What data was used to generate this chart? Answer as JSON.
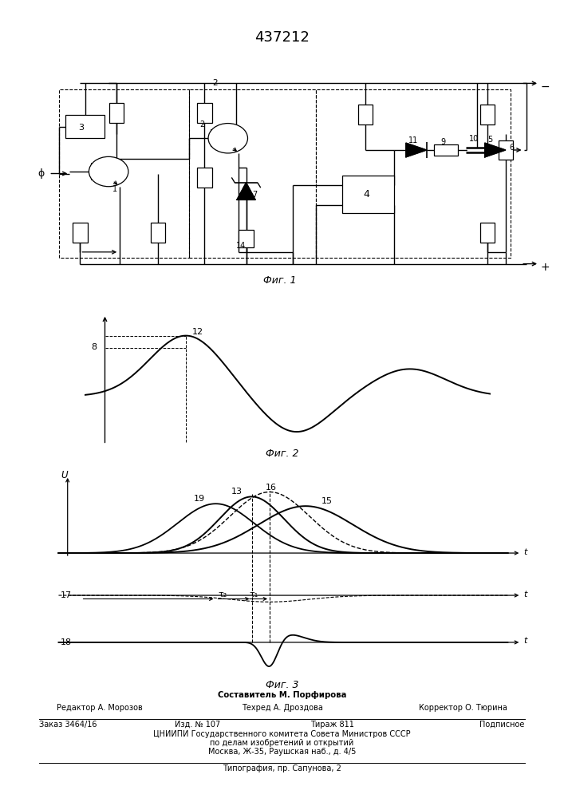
{
  "title": "437212",
  "fig1_label": "Фиг. 1",
  "fig2_label": "Фиг. 2",
  "fig3_label": "Фиг. 3",
  "footer_line1": "Составитель М. Порфирова",
  "footer_line2_left": "Редактор А. Морозов",
  "footer_line2_mid": "Техред А. Дроздова",
  "footer_line2_right": "Корректор О. Тюрина",
  "footer_line3_1": "Заказ 3464/16",
  "footer_line3_2": "Изд. № 107",
  "footer_line3_3": "Тираж 811",
  "footer_line3_4": "Подписное",
  "footer_line4": "ЦНИИПИ Государственного комитета Совета Министров СССР",
  "footer_line5": "по делам изобретений и открытий",
  "footer_line6": "Москва, Ж-35, Раушская наб., д. 4/5",
  "footer_line7": "Типография, пр. Сапунова, 2",
  "bg_color": "#ffffff",
  "line_color": "#000000"
}
